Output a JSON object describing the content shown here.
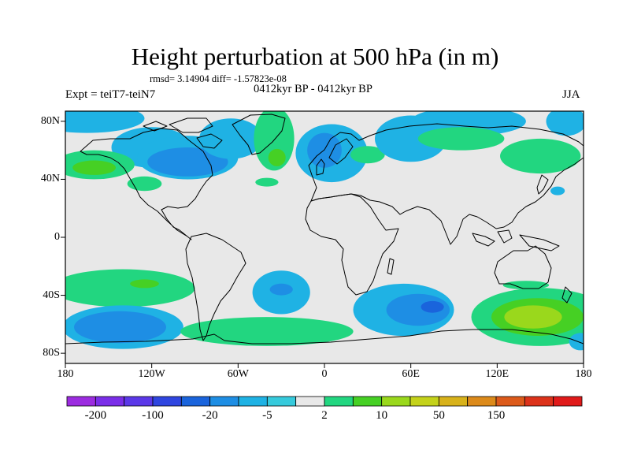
{
  "title": "Height perturbation at 500 hPa (in m)",
  "stats_text": "rmsd= 3.14904 diff= -1.57823e-08",
  "left_label": "Expt = teiT7-teiN7",
  "center_label": "0412kyr BP - 0412kyr BP",
  "right_label": "JJA",
  "lat_ticks": [
    {
      "label": "80N",
      "lat": 80
    },
    {
      "label": "40N",
      "lat": 40
    },
    {
      "label": "0",
      "lat": 0
    },
    {
      "label": "40S",
      "lat": -40
    },
    {
      "label": "80S",
      "lat": -80
    }
  ],
  "lon_ticks": [
    {
      "label": "180",
      "lon": -180
    },
    {
      "label": "120W",
      "lon": -120
    },
    {
      "label": "60W",
      "lon": -60
    },
    {
      "label": "0",
      "lon": 0
    },
    {
      "label": "60E",
      "lon": 60
    },
    {
      "label": "120E",
      "lon": 120
    },
    {
      "label": "180",
      "lon": 180
    }
  ],
  "colorbar": {
    "colors": [
      "#9c2ce0",
      "#7a2ee8",
      "#5b38e8",
      "#2f46e0",
      "#1a64dc",
      "#1e8ee4",
      "#1fb2e4",
      "#36cadc",
      "#e8e8e8",
      "#22d680",
      "#46d024",
      "#9ad81c",
      "#c4d21a",
      "#d8b21a",
      "#dc8a1a",
      "#dc5a1a",
      "#dc321a",
      "#e01a1a"
    ],
    "labels": [
      {
        "text": "-200",
        "boundary": 1
      },
      {
        "text": "-100",
        "boundary": 3
      },
      {
        "text": "-20",
        "boundary": 5
      },
      {
        "text": "-5",
        "boundary": 7
      },
      {
        "text": "2",
        "boundary": 9
      },
      {
        "text": "10",
        "boundary": 11
      },
      {
        "text": "50",
        "boundary": 13
      },
      {
        "text": "150",
        "boundary": 15
      }
    ]
  },
  "anomaly_fields": [
    {
      "lon": -165,
      "lat": 82,
      "rlon": 40,
      "rlat": 10,
      "level": "light-blue"
    },
    {
      "lon": -120,
      "lat": 62,
      "rlon": 28,
      "rlat": 14,
      "level": "light-blue"
    },
    {
      "lon": -95,
      "lat": 55,
      "rlon": 35,
      "rlat": 15,
      "level": "light-blue"
    },
    {
      "lon": -95,
      "lat": 52,
      "rlon": 28,
      "rlat": 10,
      "level": "blue"
    },
    {
      "lon": -65,
      "lat": 68,
      "rlon": 22,
      "rlat": 14,
      "level": "light-blue"
    },
    {
      "lon": -160,
      "lat": 50,
      "rlon": 28,
      "rlat": 10,
      "level": "green"
    },
    {
      "lon": -160,
      "lat": 48,
      "rlon": 15,
      "rlat": 5,
      "level": "bright-green"
    },
    {
      "lon": -35,
      "lat": 68,
      "rlon": 14,
      "rlat": 22,
      "level": "green"
    },
    {
      "lon": -33,
      "lat": 55,
      "rlon": 6,
      "rlat": 6,
      "level": "bright-green"
    },
    {
      "lon": -125,
      "lat": 37,
      "rlon": 12,
      "rlat": 5,
      "level": "green"
    },
    {
      "lon": -40,
      "lat": 38,
      "rlon": 8,
      "rlat": 3,
      "level": "green"
    },
    {
      "lon": 5,
      "lat": 58,
      "rlon": 25,
      "rlat": 20,
      "level": "light-blue"
    },
    {
      "lon": 0,
      "lat": 60,
      "rlon": 12,
      "rlat": 12,
      "level": "blue"
    },
    {
      "lon": 30,
      "lat": 57,
      "rlon": 12,
      "rlat": 6,
      "level": "green"
    },
    {
      "lon": 60,
      "lat": 68,
      "rlon": 25,
      "rlat": 16,
      "level": "light-blue"
    },
    {
      "lon": 100,
      "lat": 80,
      "rlon": 40,
      "rlat": 10,
      "level": "light-blue"
    },
    {
      "lon": 95,
      "lat": 68,
      "rlon": 30,
      "rlat": 8,
      "level": "green"
    },
    {
      "lon": 150,
      "lat": 56,
      "rlon": 28,
      "rlat": 12,
      "level": "green"
    },
    {
      "lon": 168,
      "lat": 80,
      "rlon": 14,
      "rlat": 10,
      "level": "light-blue"
    },
    {
      "lon": 162,
      "lat": 32,
      "rlon": 5,
      "rlat": 3,
      "level": "light-blue"
    },
    {
      "lon": -140,
      "lat": -35,
      "rlon": 50,
      "rlat": 13,
      "level": "green"
    },
    {
      "lon": -125,
      "lat": -32,
      "rlon": 10,
      "rlat": 3,
      "level": "bright-green"
    },
    {
      "lon": -140,
      "lat": -62,
      "rlon": 42,
      "rlat": 15,
      "level": "light-blue"
    },
    {
      "lon": -142,
      "lat": -62,
      "rlon": 32,
      "rlat": 11,
      "level": "blue"
    },
    {
      "lon": -30,
      "lat": -38,
      "rlon": 20,
      "rlat": 15,
      "level": "light-blue"
    },
    {
      "lon": -30,
      "lat": -36,
      "rlon": 8,
      "rlat": 4,
      "level": "blue"
    },
    {
      "lon": -40,
      "lat": -65,
      "rlon": 60,
      "rlat": 10,
      "level": "green"
    },
    {
      "lon": 55,
      "lat": -50,
      "rlon": 35,
      "rlat": 18,
      "level": "light-blue"
    },
    {
      "lon": 65,
      "lat": -50,
      "rlon": 22,
      "rlat": 11,
      "level": "blue"
    },
    {
      "lon": 75,
      "lat": -48,
      "rlon": 8,
      "rlat": 4,
      "level": "dark-blue"
    },
    {
      "lon": 150,
      "lat": -55,
      "rlon": 48,
      "rlat": 20,
      "level": "green"
    },
    {
      "lon": 148,
      "lat": -55,
      "rlon": 32,
      "rlat": 13,
      "level": "bright-green"
    },
    {
      "lon": 145,
      "lat": -55,
      "rlon": 20,
      "rlat": 8,
      "level": "yellow-green"
    },
    {
      "lon": 140,
      "lat": -33,
      "rlon": 16,
      "rlat": 3,
      "level": "green"
    },
    {
      "lon": 178,
      "lat": -72,
      "rlon": 8,
      "rlat": 6,
      "level": "light-blue"
    }
  ]
}
